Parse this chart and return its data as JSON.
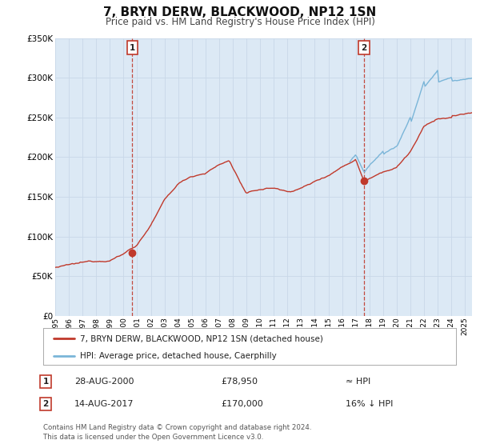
{
  "title": "7, BRYN DERW, BLACKWOOD, NP12 1SN",
  "subtitle": "Price paid vs. HM Land Registry's House Price Index (HPI)",
  "bg_color": "#dce9f5",
  "outer_bg": "#ffffff",
  "grid_color": "#c8d8e8",
  "hpi_color": "#7ab5d8",
  "price_color": "#c0392b",
  "x_min": 1995,
  "x_max": 2025.5,
  "y_min": 0,
  "y_max": 350000,
  "y_ticks": [
    0,
    50000,
    100000,
    150000,
    200000,
    250000,
    300000,
    350000
  ],
  "y_tick_labels": [
    "£0",
    "£50K",
    "£100K",
    "£150K",
    "£200K",
    "£250K",
    "£300K",
    "£350K"
  ],
  "x_ticks": [
    1995,
    1996,
    1997,
    1998,
    1999,
    2000,
    2001,
    2002,
    2003,
    2004,
    2005,
    2006,
    2007,
    2008,
    2009,
    2010,
    2011,
    2012,
    2013,
    2014,
    2015,
    2016,
    2017,
    2018,
    2019,
    2020,
    2021,
    2022,
    2023,
    2024,
    2025
  ],
  "sale1_x": 2000.65,
  "sale1_y": 78950,
  "sale1_label": "1",
  "sale1_date": "28-AUG-2000",
  "sale1_price": "£78,950",
  "sale1_vs_hpi": "≈ HPI",
  "sale2_x": 2017.62,
  "sale2_y": 170000,
  "sale2_label": "2",
  "sale2_date": "14-AUG-2017",
  "sale2_price": "£170,000",
  "sale2_vs_hpi": "16% ↓ HPI",
  "legend_label1": "7, BRYN DERW, BLACKWOOD, NP12 1SN (detached house)",
  "legend_label2": "HPI: Average price, detached house, Caerphilly",
  "footnote1": "Contains HM Land Registry data © Crown copyright and database right 2024.",
  "footnote2": "This data is licensed under the Open Government Licence v3.0."
}
